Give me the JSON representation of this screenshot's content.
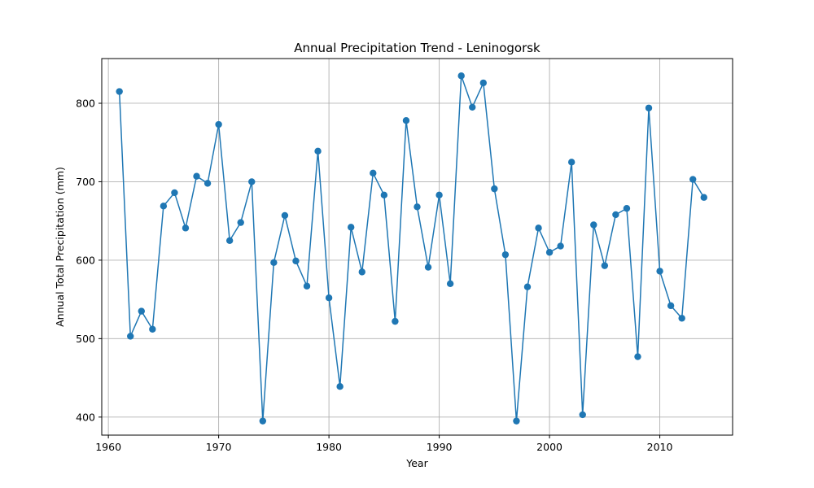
{
  "chart_data": {
    "type": "line",
    "title": "Annual Precipitation Trend - Leninogorsk",
    "xlabel": "Year",
    "ylabel": "Annual Total Precipitation (mm)",
    "xlim": [
      1959.4,
      2016.6
    ],
    "ylim": [
      377,
      857
    ],
    "xticks": [
      1960,
      1970,
      1980,
      1990,
      2000,
      2010
    ],
    "yticks": [
      400,
      500,
      600,
      700,
      800
    ],
    "grid": true,
    "color": "#1f77b4",
    "marker": "circle",
    "series": [
      {
        "x": [
          1961,
          1962,
          1963,
          1964,
          1965,
          1966,
          1967,
          1968,
          1969,
          1970,
          1971,
          1972,
          1973,
          1974,
          1975,
          1976,
          1977,
          1978,
          1979,
          1980,
          1981,
          1982,
          1983,
          1984,
          1985,
          1986,
          1987,
          1988,
          1989,
          1990,
          1991,
          1992,
          1993,
          1994,
          1995,
          1996,
          1997,
          1998,
          1999,
          2000,
          2001,
          2002,
          2003,
          2004,
          2005,
          2006,
          2007,
          2008,
          2009,
          2010,
          2011,
          2012,
          2013,
          2014
        ],
        "values": [
          815,
          503,
          535,
          512,
          669,
          686,
          641,
          707,
          698,
          773,
          625,
          648,
          700,
          395,
          597,
          657,
          599,
          567,
          739,
          552,
          439,
          642,
          585,
          711,
          683,
          522,
          778,
          668,
          591,
          683,
          570,
          835,
          795,
          826,
          691,
          607,
          395,
          566,
          641,
          610,
          618,
          725,
          403,
          645,
          593,
          658,
          666,
          477,
          794,
          586,
          542,
          526,
          703,
          680
        ]
      }
    ]
  }
}
